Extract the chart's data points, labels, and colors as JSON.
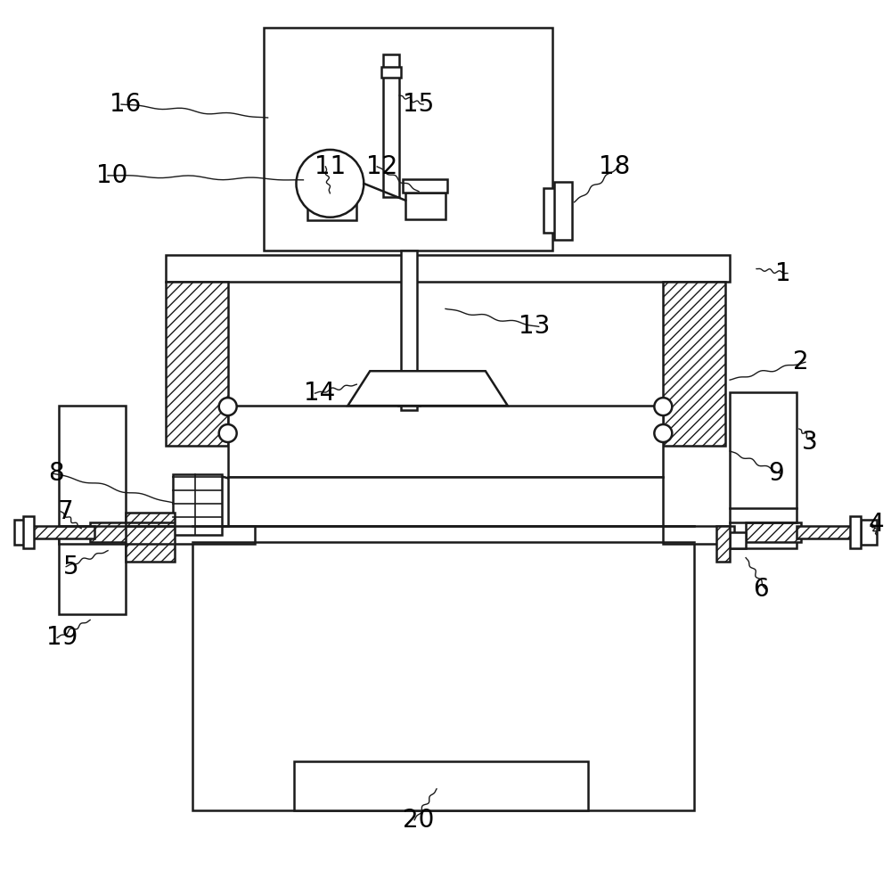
{
  "bg_color": "#ffffff",
  "lc": "#1a1a1a",
  "figsize": [
    10.0,
    9.86
  ],
  "dpi": 100
}
